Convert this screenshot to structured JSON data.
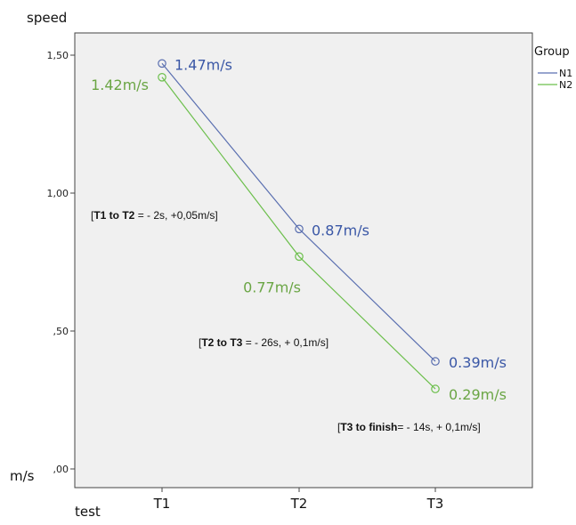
{
  "chart_data": {
    "type": "line",
    "ylabel": "speed",
    "yunit": "m/s",
    "xlabel": "test",
    "categories": [
      "T1",
      "T2",
      "T3"
    ],
    "ylim": [
      0,
      1.65
    ],
    "yticks": [
      {
        "value": 0,
        "label": ",00"
      },
      {
        "value": 0.5,
        "label": ",50"
      },
      {
        "value": 1.0,
        "label": "1,00"
      },
      {
        "value": 1.5,
        "label": "1,50"
      }
    ],
    "grid": false,
    "legend": {
      "title": "Group",
      "position": "top-right"
    },
    "series": [
      {
        "name": "N1",
        "color": "#5a6fb0",
        "label_color": "#3a57a6",
        "values": [
          1.47,
          0.87,
          0.39
        ],
        "labels": [
          "1.47m/s",
          "0.87m/s",
          "0.39m/s"
        ]
      },
      {
        "name": "N2",
        "color": "#6cbf4c",
        "label_color": "#6aa544",
        "values": [
          1.42,
          0.77,
          0.29
        ],
        "labels": [
          "1.42m/s",
          "0.77m/s",
          "0.29m/s"
        ]
      }
    ],
    "annotations": [
      {
        "bold": "T1 to T2",
        "rest": " = - 2s, +0,05m/s"
      },
      {
        "bold": "T2 to T3",
        "rest": " = - 26s, + 0,1m/s"
      },
      {
        "bold": "T3 to finish",
        "rest": "= - 14s, + 0,1m/s"
      }
    ]
  }
}
